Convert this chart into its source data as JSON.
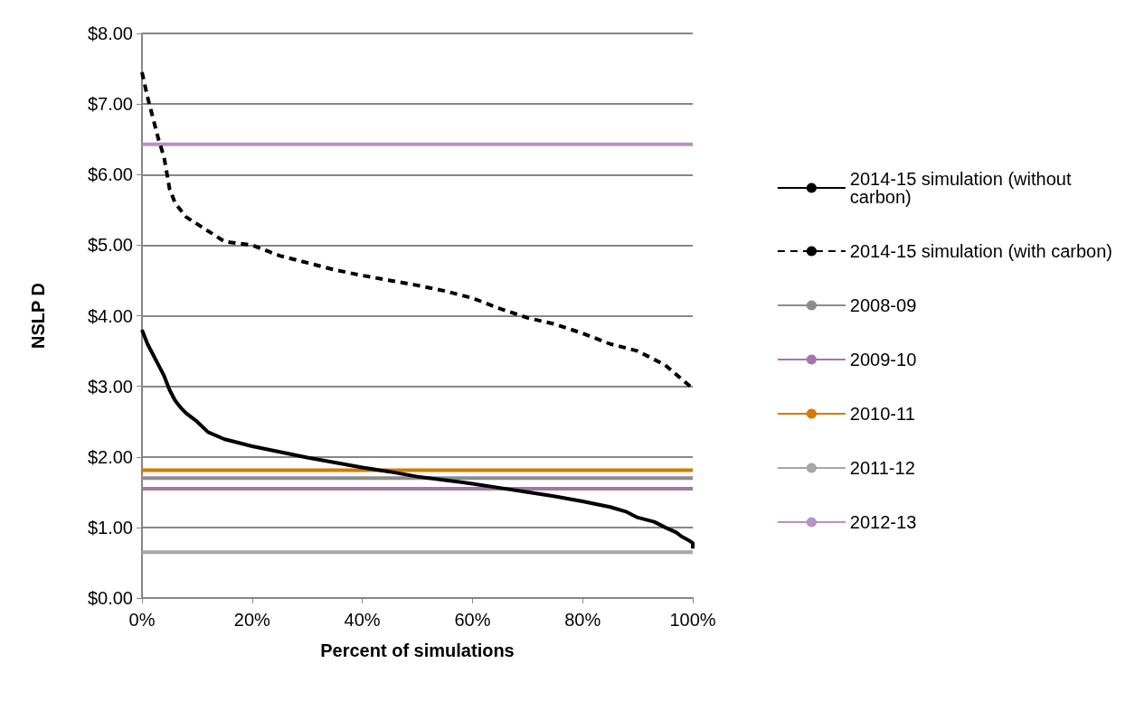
{
  "chart_data": {
    "type": "line",
    "xlabel": "Percent of simulations",
    "ylabel": "NSLP D",
    "xlim": [
      0,
      100
    ],
    "xticks": [
      {
        "value": 0,
        "label": "0%"
      },
      {
        "value": 20,
        "label": "20%"
      },
      {
        "value": 40,
        "label": "40%"
      },
      {
        "value": 60,
        "label": "60%"
      },
      {
        "value": 80,
        "label": "80%"
      },
      {
        "value": 100,
        "label": "100%"
      }
    ],
    "ylim": [
      0,
      8
    ],
    "yticks": [
      {
        "value": 0,
        "label": "$0.00"
      },
      {
        "value": 1,
        "label": "$1.00"
      },
      {
        "value": 2,
        "label": "$2.00"
      },
      {
        "value": 3,
        "label": "$3.00"
      },
      {
        "value": 4,
        "label": "$4.00"
      },
      {
        "value": 5,
        "label": "$5.00"
      },
      {
        "value": 6,
        "label": "$6.00"
      },
      {
        "value": 7,
        "label": "$7.00"
      },
      {
        "value": 8,
        "label": "$8.00"
      }
    ],
    "grid": "y",
    "legend": "right",
    "marker": "none",
    "series": [
      {
        "name": "2014-15 simulation (without carbon)",
        "color": "#000000",
        "line_style": "solid",
        "x": [
          0,
          0.5,
          1,
          2,
          3,
          4,
          5,
          6,
          7,
          8,
          10,
          12,
          15,
          20,
          25,
          30,
          35,
          40,
          45,
          50,
          55,
          60,
          65,
          70,
          75,
          80,
          85,
          88,
          90,
          93,
          95,
          97,
          98,
          99,
          100,
          100
        ],
        "values": [
          3.8,
          3.7,
          3.6,
          3.45,
          3.3,
          3.15,
          2.95,
          2.8,
          2.7,
          2.62,
          2.5,
          2.35,
          2.25,
          2.15,
          2.07,
          1.99,
          1.92,
          1.85,
          1.79,
          1.72,
          1.67,
          1.62,
          1.56,
          1.5,
          1.44,
          1.37,
          1.29,
          1.22,
          1.14,
          1.08,
          1.0,
          0.93,
          0.87,
          0.83,
          0.78,
          0.7
        ]
      },
      {
        "name": "2014-15 simulation (with carbon)",
        "color": "#000000",
        "line_style": "dashed",
        "x": [
          0,
          1,
          2,
          3,
          4,
          5,
          6,
          8,
          10,
          13,
          15,
          20,
          25,
          30,
          35,
          40,
          45,
          50,
          55,
          60,
          65,
          70,
          75,
          80,
          85,
          90,
          95,
          98,
          100
        ],
        "values": [
          7.45,
          7.1,
          6.8,
          6.5,
          6.25,
          5.8,
          5.6,
          5.4,
          5.3,
          5.15,
          5.05,
          5.0,
          4.85,
          4.75,
          4.65,
          4.57,
          4.5,
          4.43,
          4.35,
          4.25,
          4.1,
          3.97,
          3.88,
          3.75,
          3.6,
          3.5,
          3.3,
          3.1,
          2.97
        ]
      },
      {
        "name": "2008-09",
        "color": "#8c8c8c",
        "line_style": "solid",
        "x": [
          0,
          100
        ],
        "values": [
          1.7,
          1.7
        ]
      },
      {
        "name": "2009-10",
        "color": "#9e78aa",
        "line_style": "solid",
        "x": [
          0,
          100
        ],
        "values": [
          1.55,
          1.55
        ]
      },
      {
        "name": "2010-11",
        "color": "#d47a00",
        "line_style": "solid",
        "x": [
          0,
          100
        ],
        "values": [
          1.81,
          1.81
        ]
      },
      {
        "name": "2011-12",
        "color": "#a6a6a6",
        "line_style": "solid",
        "x": [
          0,
          100
        ],
        "values": [
          0.65,
          0.65
        ]
      },
      {
        "name": "2012-13",
        "color": "#b692c0",
        "line_style": "solid",
        "x": [
          0,
          100
        ],
        "values": [
          6.43,
          6.43
        ]
      }
    ]
  }
}
